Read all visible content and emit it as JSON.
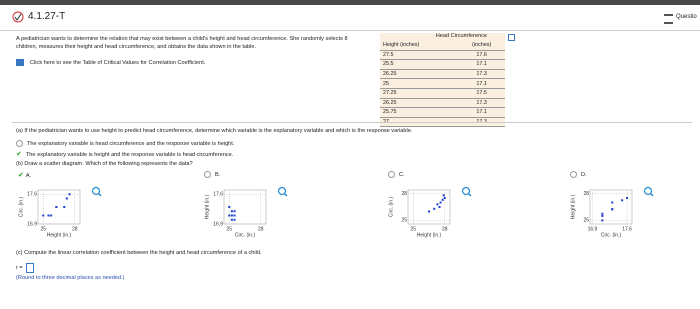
{
  "header": {
    "title": "4.1.27-T",
    "menu": "Questio"
  },
  "problem": {
    "text": "A pediatrician wants to determine the relation that may exist between a child's height and head circumference. She randomly selects 8 children, measures their height and head circumference, and obtains the data shown in the table.",
    "link": "Click here to see the Table of Critical Values for Correlation Coefficient."
  },
  "table": {
    "header_top": "Head Circumference",
    "columns": [
      "Height (inches)",
      "(inches)"
    ],
    "rows": [
      [
        27.5,
        17.6
      ],
      [
        25.5,
        17.1
      ],
      [
        26.25,
        17.3
      ],
      [
        25,
        17.1
      ],
      [
        27.25,
        17.5
      ],
      [
        26.25,
        17.3
      ],
      [
        25.75,
        17.1
      ],
      [
        27,
        17.3
      ]
    ]
  },
  "part_a": {
    "question": "(a) If the pediatrician wants to use height to predict head circumference, determine which variable is the explanatory variable and which is the response variable.",
    "options": [
      "The explanatory variable is head circumference and the response variable is height.",
      "The explanatory variable is height and the response variable is head circumference."
    ]
  },
  "part_b": {
    "question": "(b) Draw a scatter diagram. Which of the following represents the data?",
    "options": [
      {
        "label": "A.",
        "chart": {
          "type": "scatter",
          "x_label": "Height (in.)",
          "y_label": "Circ. (in.)",
          "xlim": [
            24.5,
            28.5
          ],
          "ylim": [
            16.9,
            17.7
          ],
          "xticks": [
            25,
            28
          ],
          "yticks": [
            16.9,
            17.6
          ],
          "x": [
            27.5,
            25.5,
            26.25,
            25,
            27.25,
            26.25,
            25.75,
            27
          ],
          "y": [
            17.6,
            17.1,
            17.3,
            17.1,
            17.5,
            17.3,
            17.1,
            17.3
          ]
        }
      },
      {
        "label": "B.",
        "chart": {
          "type": "scatter",
          "x_label": "Circ. (in.)",
          "y_label": "Height (in.)",
          "xlim": [
            24.5,
            28.5
          ],
          "ylim": [
            16.9,
            17.7
          ],
          "xticks": [
            25,
            28
          ],
          "yticks": [
            16.9,
            17.6
          ],
          "x": [
            25,
            25.25,
            25.5,
            25.25,
            25.5,
            25.25,
            25.5,
            25
          ],
          "y": [
            17.1,
            17.1,
            17.2,
            17.2,
            17.1,
            17.0,
            17.0,
            17.3
          ]
        }
      },
      {
        "label": "C.",
        "chart": {
          "type": "scatter",
          "x_label": "Height (in.)",
          "y_label": "Circ. (in.)",
          "xlim": [
            24.5,
            28.5
          ],
          "ylim": [
            24.6,
            28.4
          ],
          "xticks": [
            25,
            28
          ],
          "yticks": [
            25,
            28
          ],
          "x": [
            26.5,
            27,
            27.3,
            27.6,
            27.8,
            28,
            27.5,
            27.9
          ],
          "y": [
            26,
            26.3,
            26.8,
            27,
            27.3,
            27.5,
            26.5,
            27.8
          ]
        }
      },
      {
        "label": "D.",
        "chart": {
          "type": "scatter",
          "x_label": "Circ. (in.)",
          "y_label": "Height (in.)",
          "xlim": [
            16.85,
            17.7
          ],
          "ylim": [
            24.6,
            28.4
          ],
          "xticks": [
            16.9,
            17.6
          ],
          "yticks": [
            25,
            28
          ],
          "x": [
            17.1,
            17.1,
            17.1,
            17.3,
            17.3,
            17.3,
            17.5,
            17.6
          ],
          "y": [
            25,
            25.5,
            25.75,
            26.25,
            26.25,
            27,
            27.25,
            27.5
          ]
        }
      }
    ]
  },
  "part_c": {
    "question": "(c) Compute the linear correlation coefficient between the height and head circumference of a child.",
    "input_label": "r =",
    "hint": "(Round to three decimal places as needed.)"
  }
}
